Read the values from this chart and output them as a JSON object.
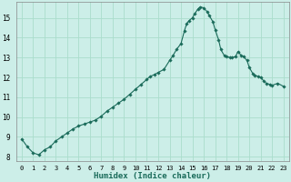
{
  "xlabel": "Humidex (Indice chaleur)",
  "background_color": "#cceee8",
  "grid_color": "#aaddcc",
  "line_color": "#1a6b5a",
  "marker_color": "#1a6b5a",
  "xlim": [
    -0.5,
    23.5
  ],
  "ylim": [
    7.8,
    15.8
  ],
  "yticks": [
    8,
    9,
    10,
    11,
    12,
    13,
    14,
    15
  ],
  "xticks": [
    0,
    1,
    2,
    3,
    4,
    5,
    6,
    7,
    8,
    9,
    10,
    11,
    12,
    13,
    14,
    15,
    16,
    17,
    18,
    19,
    20,
    21,
    22,
    23
  ],
  "x": [
    0,
    0.5,
    1,
    1.5,
    2,
    2.5,
    3,
    3.5,
    4,
    4.5,
    5,
    5.5,
    6,
    6.5,
    7,
    7.5,
    8,
    8.5,
    9,
    9.5,
    10,
    10.5,
    11,
    11.3,
    11.7,
    12,
    12.5,
    13,
    13.3,
    13.6,
    14,
    14.3,
    14.5,
    14.7,
    15,
    15.2,
    15.5,
    15.7,
    16,
    16.3,
    16.5,
    16.8,
    17,
    17.3,
    17.5,
    17.8,
    18,
    18.3,
    18.5,
    18.8,
    19,
    19.3,
    19.5,
    19.8,
    20,
    20.3,
    20.5,
    20.8,
    21,
    21.3,
    21.5,
    21.8,
    22,
    22.5,
    23
  ],
  "y": [
    8.9,
    8.5,
    8.2,
    8.1,
    8.35,
    8.5,
    8.8,
    9.0,
    9.2,
    9.4,
    9.55,
    9.65,
    9.75,
    9.85,
    10.05,
    10.3,
    10.5,
    10.7,
    10.9,
    11.15,
    11.4,
    11.65,
    11.9,
    12.05,
    12.15,
    12.25,
    12.4,
    12.85,
    13.1,
    13.4,
    13.7,
    14.35,
    14.7,
    14.85,
    15.0,
    15.2,
    15.45,
    15.55,
    15.5,
    15.3,
    15.1,
    14.8,
    14.4,
    13.9,
    13.4,
    13.1,
    13.05,
    13.0,
    13.0,
    13.05,
    13.3,
    13.1,
    13.05,
    12.85,
    12.5,
    12.2,
    12.1,
    12.05,
    12.0,
    11.8,
    11.7,
    11.65,
    11.6,
    11.7,
    11.55
  ]
}
